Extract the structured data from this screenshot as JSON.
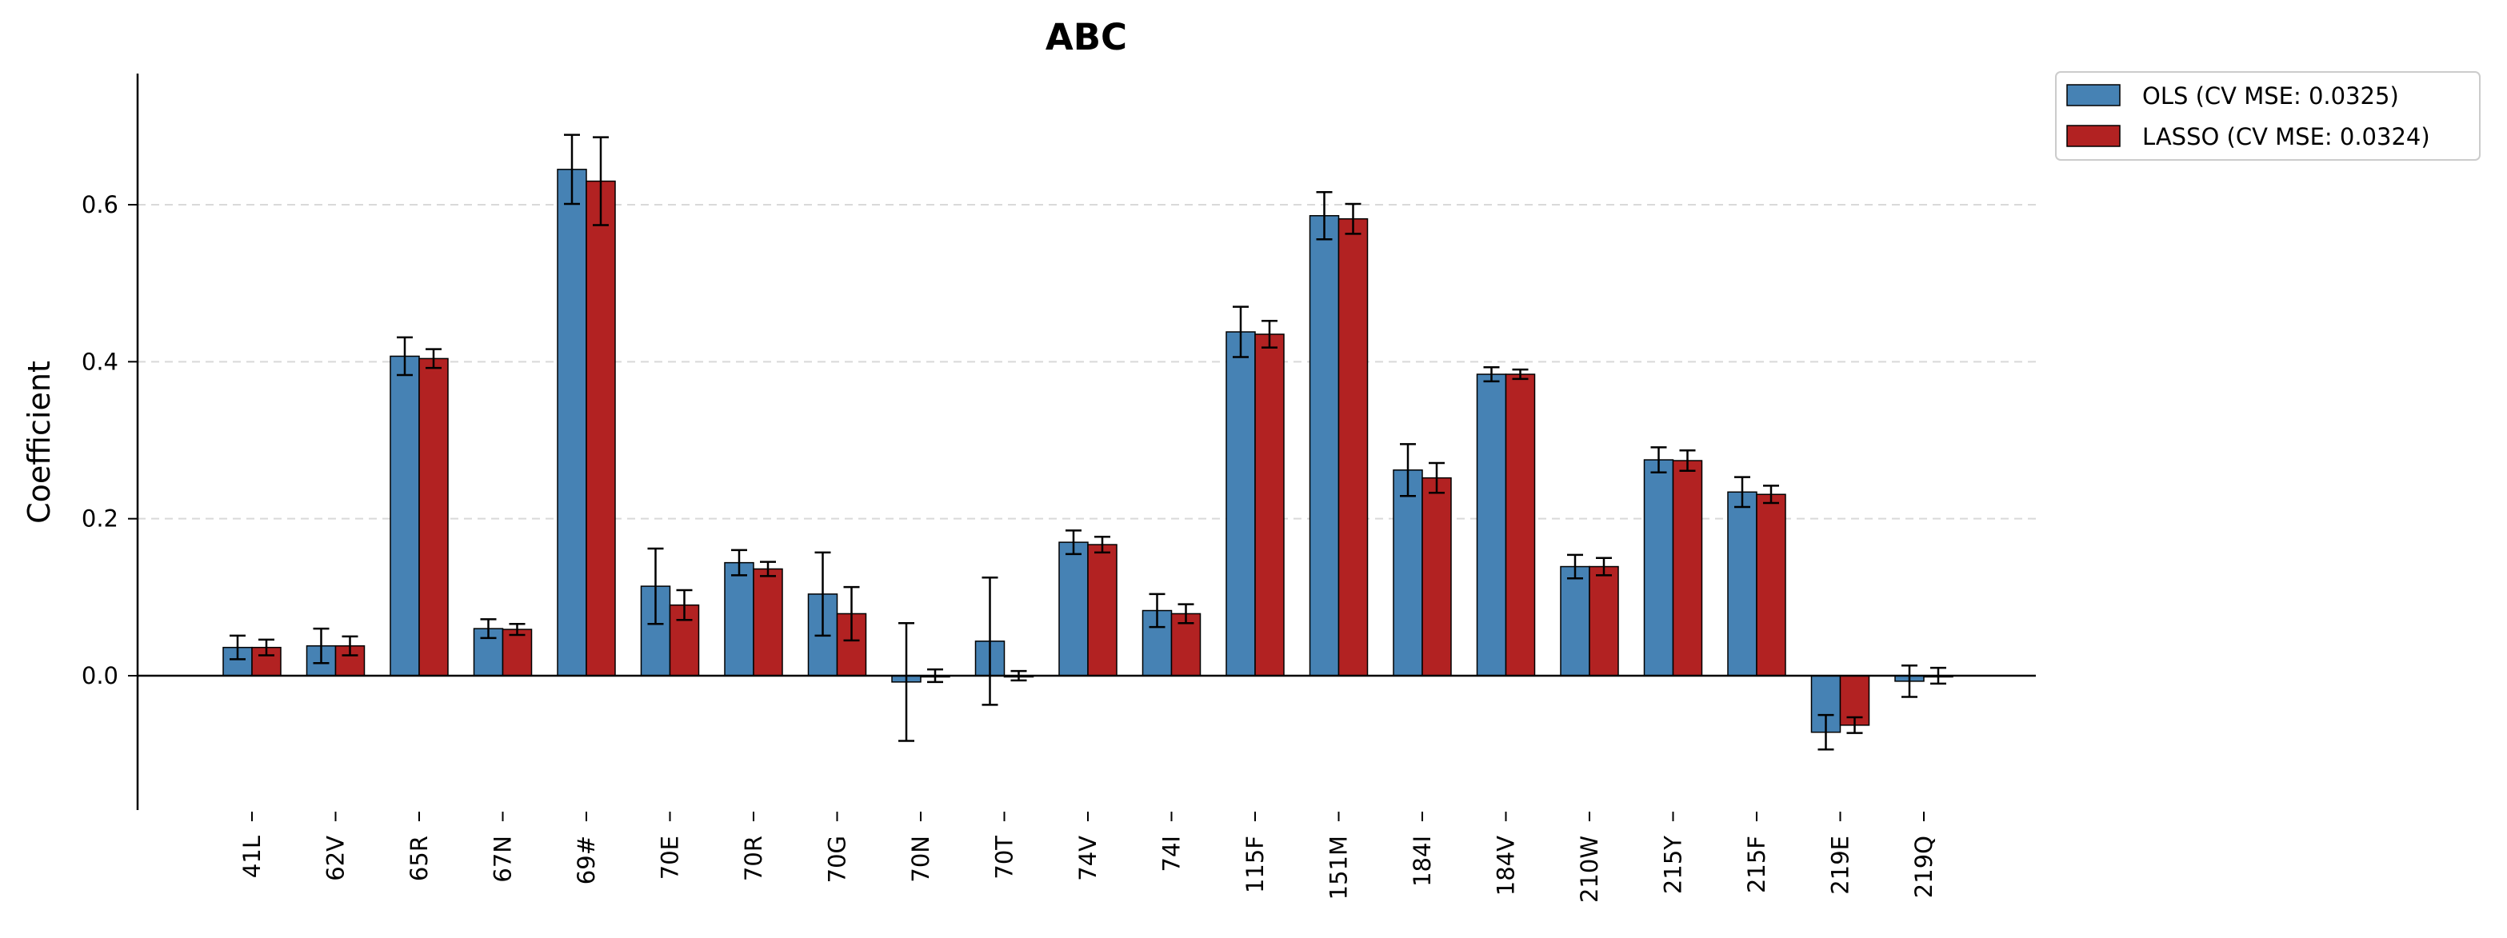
{
  "chart_data": {
    "type": "bar",
    "title": "ABC",
    "ylabel": "Coefficient",
    "xlabel": "",
    "ylim": [
      -0.175,
      0.77
    ],
    "yticks": [
      "0.0",
      "0.2",
      "0.4",
      "0.6"
    ],
    "grid": "horizontal dashed at y ticks",
    "legend_position": "upper right, outside plot",
    "categories": [
      "41L",
      "62V",
      "65R",
      "67N",
      "69#",
      "70E",
      "70R",
      "70G",
      "70N",
      "70T",
      "74V",
      "74I",
      "115F",
      "151M",
      "184I",
      "184V",
      "210W",
      "215Y",
      "215F",
      "219E",
      "219Q"
    ],
    "series": [
      {
        "name": "OLS (CV MSE: 0.0325)",
        "color": "#4682b4",
        "values": [
          0.036,
          0.038,
          0.407,
          0.06,
          0.645,
          0.114,
          0.144,
          0.104,
          -0.008,
          0.044,
          0.17,
          0.083,
          0.438,
          0.586,
          0.262,
          0.384,
          0.139,
          0.275,
          0.234,
          -0.072,
          -0.007
        ],
        "errors": [
          0.015,
          0.022,
          0.024,
          0.012,
          0.044,
          0.048,
          0.016,
          0.053,
          0.075,
          0.081,
          0.015,
          0.021,
          0.032,
          0.03,
          0.033,
          0.009,
          0.015,
          0.016,
          0.019,
          0.022,
          0.02
        ]
      },
      {
        "name": "LASSO (CV MSE: 0.0324)",
        "color": "#b22222",
        "values": [
          0.036,
          0.038,
          0.404,
          0.059,
          0.63,
          0.09,
          0.136,
          0.079,
          0.0,
          0.0,
          0.167,
          0.079,
          0.435,
          0.582,
          0.252,
          0.384,
          0.139,
          0.274,
          0.231,
          -0.063,
          0.0
        ],
        "errors": [
          0.01,
          0.012,
          0.012,
          0.007,
          0.056,
          0.019,
          0.009,
          0.034,
          0.008,
          0.006,
          0.01,
          0.012,
          0.017,
          0.019,
          0.019,
          0.006,
          0.011,
          0.013,
          0.011,
          0.01,
          0.01
        ]
      }
    ]
  }
}
